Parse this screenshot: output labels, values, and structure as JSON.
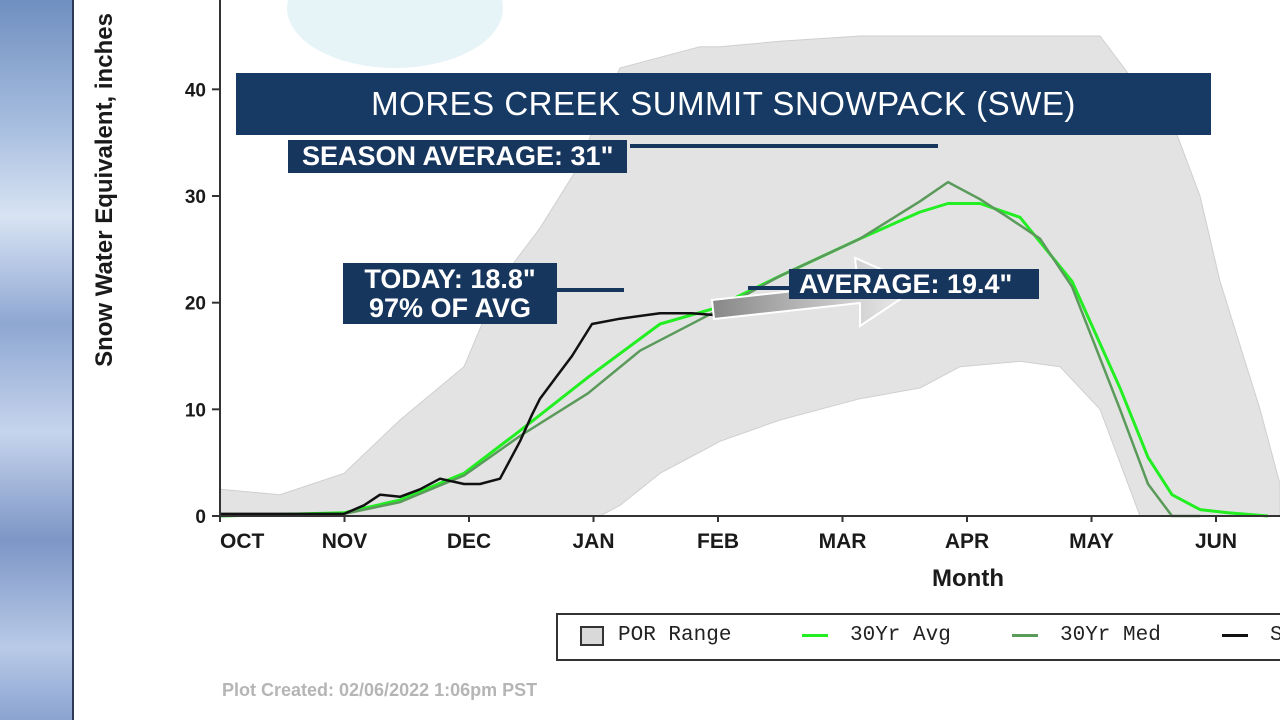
{
  "banner": {
    "title": "MORES CREEK SUMMIT SNOWPACK (SWE)"
  },
  "labels": {
    "season_average": "SEASON AVERAGE: 31\"",
    "today_line1": "TODAY: 18.8\"",
    "today_line2": "97% OF AVG",
    "average": "AVERAGE: 19.4\""
  },
  "legend": {
    "por_range": "POR Range",
    "avg30": "30Yr Avg",
    "med30": "30Yr Med",
    "current": "S"
  },
  "footer": {
    "plot_created": "Plot Created: 02/06/2022 1:06pm PST"
  },
  "colors": {
    "banner_bg": "#173a64",
    "label_bg": "#17365d",
    "por_fill": "#e3e3e3",
    "avg_line": "#22ee22",
    "med_line": "#5a9a5a",
    "current_line": "#111111",
    "arrow": "#cfcfcf"
  },
  "chart_data": {
    "type": "line",
    "title": "MORES CREEK SUMMIT SNOWPACK (SWE)",
    "xlabel": "Month",
    "ylabel": "Snow Water Equivalent, inches",
    "x_categories": [
      "OCT",
      "NOV",
      "DEC",
      "JAN",
      "FEB",
      "MAR",
      "APR",
      "MAY",
      "JUN"
    ],
    "x_day_range": [
      0,
      265
    ],
    "ylim": [
      0,
      45
    ],
    "yticks": [
      0,
      10,
      20,
      30,
      40
    ],
    "grid": false,
    "legend_position": "bottom",
    "por_range": {
      "x": [
        0,
        15,
        31,
        45,
        61,
        70,
        80,
        90,
        95,
        100,
        110,
        120,
        125,
        140,
        160,
        175,
        185,
        200,
        210,
        220,
        230,
        237,
        245,
        250,
        260,
        265
      ],
      "max": [
        2.5,
        2,
        4,
        9,
        14,
        22,
        27,
        33,
        38,
        42,
        43,
        44,
        44,
        44.5,
        45,
        45,
        45,
        45,
        45,
        45,
        40,
        38,
        30,
        22,
        10,
        3
      ],
      "min": [
        0,
        0,
        0,
        0,
        0,
        0,
        0,
        0,
        0,
        1,
        4,
        6,
        7,
        9,
        11,
        12,
        14,
        14.5,
        14,
        10,
        0,
        0,
        0,
        0,
        0,
        0
      ]
    },
    "series": [
      {
        "name": "30Yr Avg",
        "x": [
          0,
          31,
          45,
          61,
          75,
          92,
          110,
          123,
          140,
          160,
          175,
          182,
          190,
          200,
          213,
          225,
          232,
          238,
          245,
          252,
          262
        ],
        "values": [
          0,
          0.3,
          1.5,
          4,
          8,
          13,
          18,
          19.4,
          22.5,
          26,
          28.5,
          29.3,
          29.3,
          28,
          22,
          12,
          5.5,
          2,
          0.6,
          0.3,
          0
        ]
      },
      {
        "name": "30Yr Med",
        "x": [
          0,
          31,
          45,
          61,
          75,
          92,
          105,
          123,
          140,
          160,
          175,
          182,
          190,
          197,
          205,
          213,
          225,
          232,
          238,
          245
        ],
        "values": [
          0,
          0.2,
          1.3,
          3.8,
          7.5,
          11.5,
          15.5,
          19,
          22.5,
          26,
          29.5,
          31.3,
          29.7,
          28,
          26,
          21.5,
          10,
          3,
          0,
          0
        ]
      },
      {
        "name": "Current",
        "x": [
          0,
          31,
          36,
          40,
          45,
          50,
          55,
          61,
          65,
          70,
          75,
          78,
          80,
          84,
          88,
          93,
          100,
          110,
          118,
          125
        ],
        "values": [
          0.2,
          0.2,
          1,
          2,
          1.8,
          2.5,
          3.5,
          3,
          3,
          3.5,
          7,
          9.5,
          11,
          13,
          15,
          18,
          18.5,
          19,
          19,
          18.8
        ]
      }
    ],
    "annotations": [
      "SEASON AVERAGE: 31\"",
      "TODAY: 18.8\"",
      "97% OF AVG",
      "AVERAGE: 19.4\""
    ]
  }
}
